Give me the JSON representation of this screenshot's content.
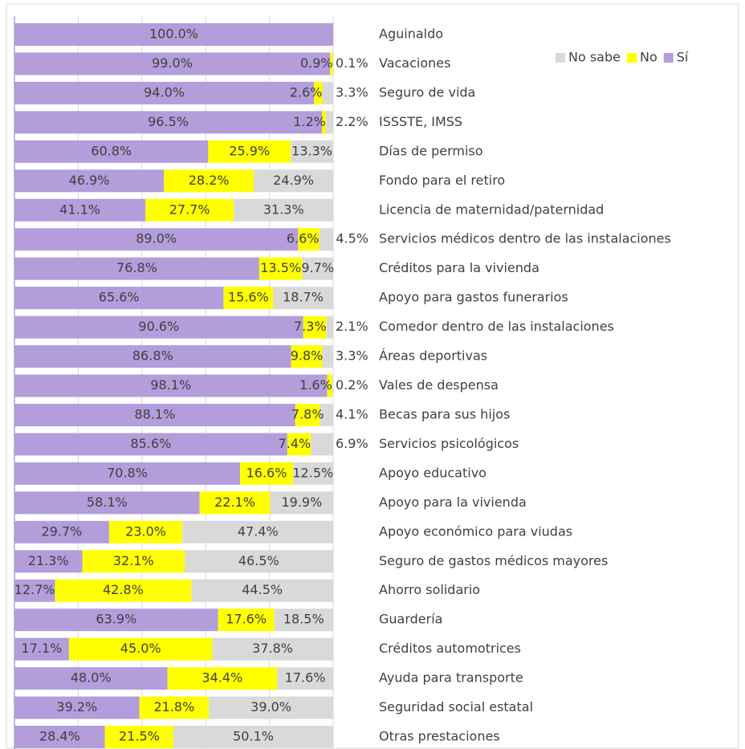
{
  "chart_data": {
    "type": "stacked-bar-horizontal",
    "categories": [
      "Aguinaldo",
      "Vacaciones",
      "Seguro de vida",
      "ISSSTE, IMSS",
      "Días de permiso",
      "Fondo para el retiro",
      "Licencia de maternidad/paternidad",
      "Servicios médicos dentro de las instalaciones",
      "Créditos para la vivienda",
      "Apoyo para gastos funerarios",
      "Comedor dentro de las instalaciones",
      "Áreas deportivas",
      "Vales de despensa",
      "Becas para sus hijos",
      "Servicios psicológicos",
      "Apoyo educativo",
      "Apoyo para la vivienda",
      "Apoyo económico para viudas",
      "Seguro de gastos médicos mayores",
      "Ahorro solidario",
      "Guardería",
      "Créditos automotrices",
      "Ayuda para transporte",
      "Seguridad social estatal",
      "Otras prestaciones"
    ],
    "series": [
      {
        "name": "Sí",
        "color": "#b39ddb",
        "values": [
          100.0,
          99.0,
          94.0,
          96.5,
          60.8,
          46.9,
          41.1,
          89.0,
          76.8,
          65.6,
          90.6,
          86.8,
          98.1,
          88.1,
          85.6,
          70.8,
          58.1,
          29.7,
          21.3,
          12.7,
          63.9,
          17.1,
          48.0,
          39.2,
          28.4
        ],
        "value_labels": [
          "100.0%",
          "99.0%",
          "94.0%",
          "96.5%",
          "60.8%",
          "46.9%",
          "41.1%",
          "89.0%",
          "76.8%",
          "65.6%",
          "90.6%",
          "86.8%",
          "98.1%",
          "88.1%",
          "85.6%",
          "70.8%",
          "58.1%",
          "29.7%",
          "21.3%",
          "12.7%",
          "63.9%",
          "17.1%",
          "48.0%",
          "39.2%",
          "28.4%"
        ]
      },
      {
        "name": "No",
        "color": "#ffff00",
        "values": [
          null,
          0.9,
          2.6,
          1.2,
          25.9,
          28.2,
          27.7,
          6.6,
          13.5,
          15.6,
          7.3,
          9.8,
          1.6,
          7.8,
          7.4,
          16.6,
          22.1,
          23.0,
          32.1,
          42.8,
          17.6,
          45.0,
          34.4,
          21.8,
          21.5
        ],
        "value_labels": [
          null,
          "0.9%",
          "2.6%",
          "1.2%",
          "25.9%",
          "28.2%",
          "27.7%",
          "6.6%",
          "13.5%",
          "15.6%",
          "7.3%",
          "9.8%",
          "1.6%",
          "7.8%",
          "7.4%",
          "16.6%",
          "22.1%",
          "23.0%",
          "32.1%",
          "42.8%",
          "17.6%",
          "45.0%",
          "34.4%",
          "21.8%",
          "21.5%"
        ]
      },
      {
        "name": "No sabe",
        "color": "#d9d9d9",
        "values": [
          null,
          0.1,
          3.3,
          2.2,
          13.3,
          24.9,
          31.3,
          4.5,
          9.7,
          18.7,
          2.1,
          3.3,
          0.2,
          4.1,
          6.9,
          12.5,
          19.9,
          47.4,
          46.5,
          44.5,
          18.5,
          37.8,
          17.6,
          39.0,
          50.1
        ],
        "value_labels": [
          null,
          "0.1%",
          "3.3%",
          "2.2%",
          "13.3%",
          "24.9%",
          "31.3%",
          "4.5%",
          "9.7%",
          "18.7%",
          "2.1%",
          "3.3%",
          "0.2%",
          "4.1%",
          "6.9%",
          "12.5%",
          "19.9%",
          "47.4%",
          "46.5%",
          "44.5%",
          "18.5%",
          "37.8%",
          "17.6%",
          "39.0%",
          "50.1%"
        ]
      }
    ],
    "xlim": [
      0,
      100
    ],
    "xticks": [
      0,
      20,
      40,
      60,
      80,
      100
    ],
    "grid": true,
    "legend": "top-right"
  }
}
